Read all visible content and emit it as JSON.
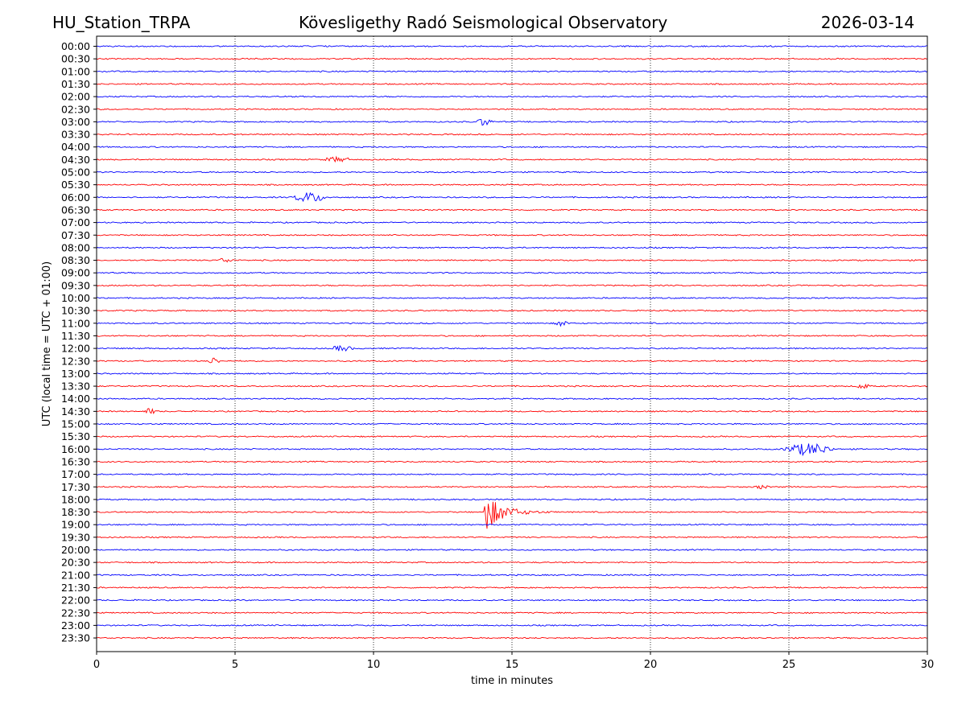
{
  "header": {
    "station": "HU_Station_TRPA",
    "observatory": "Kövesligethy Radó Seismological Observatory",
    "date": "2026-03-14"
  },
  "chart_data": {
    "type": "line",
    "title": "Kövesligethy Radó Seismological Observatory",
    "xlabel": "time in minutes",
    "ylabel": "UTC (local time = UTC + 01:00)",
    "xlim": [
      0,
      30
    ],
    "x_ticks": [
      0,
      5,
      10,
      15,
      20,
      25,
      30
    ],
    "grid": "vertical dotted at 5-minute intervals",
    "trace_colors": [
      "#0000ff",
      "#ff0000"
    ],
    "row_labels": [
      "00:00",
      "00:30",
      "01:00",
      "01:30",
      "02:00",
      "02:30",
      "03:00",
      "03:30",
      "04:00",
      "04:30",
      "05:00",
      "05:30",
      "06:00",
      "06:30",
      "07:00",
      "07:30",
      "08:00",
      "08:30",
      "09:00",
      "09:30",
      "10:00",
      "10:30",
      "11:00",
      "11:30",
      "12:00",
      "12:30",
      "13:00",
      "13:30",
      "14:00",
      "14:30",
      "15:00",
      "15:30",
      "16:00",
      "16:30",
      "17:00",
      "17:30",
      "18:00",
      "18:30",
      "19:00",
      "19:30",
      "20:00",
      "20:30",
      "21:00",
      "21:30",
      "22:00",
      "22:30",
      "23:00",
      "23:30"
    ],
    "events": [
      {
        "row": "03:00",
        "start_min": 13.7,
        "duration_min": 0.8,
        "amplitude": 1.6
      },
      {
        "row": "04:30",
        "start_min": 8.1,
        "duration_min": 1.5,
        "amplitude": 0.9
      },
      {
        "row": "06:00",
        "start_min": 7.0,
        "duration_min": 1.8,
        "amplitude": 1.9
      },
      {
        "row": "08:30",
        "start_min": 4.3,
        "duration_min": 0.9,
        "amplitude": 0.8
      },
      {
        "row": "11:00",
        "start_min": 16.5,
        "duration_min": 0.8,
        "amplitude": 1.0
      },
      {
        "row": "12:00",
        "start_min": 8.4,
        "duration_min": 1.2,
        "amplitude": 1.0
      },
      {
        "row": "12:30",
        "start_min": 4.0,
        "duration_min": 0.6,
        "amplitude": 1.4
      },
      {
        "row": "14:30",
        "start_min": 1.7,
        "duration_min": 0.6,
        "amplitude": 1.1
      },
      {
        "row": "16:00",
        "start_min": 24.7,
        "duration_min": 2.6,
        "amplitude": 2.3
      },
      {
        "row": "17:30",
        "start_min": 23.8,
        "duration_min": 0.6,
        "amplitude": 0.9
      },
      {
        "row": "18:30",
        "start_min": 14.0,
        "duration_min": 2.6,
        "amplitude": 8.5
      },
      {
        "row": "13:30",
        "start_min": 27.4,
        "duration_min": 0.7,
        "amplitude": 1.0
      }
    ]
  }
}
